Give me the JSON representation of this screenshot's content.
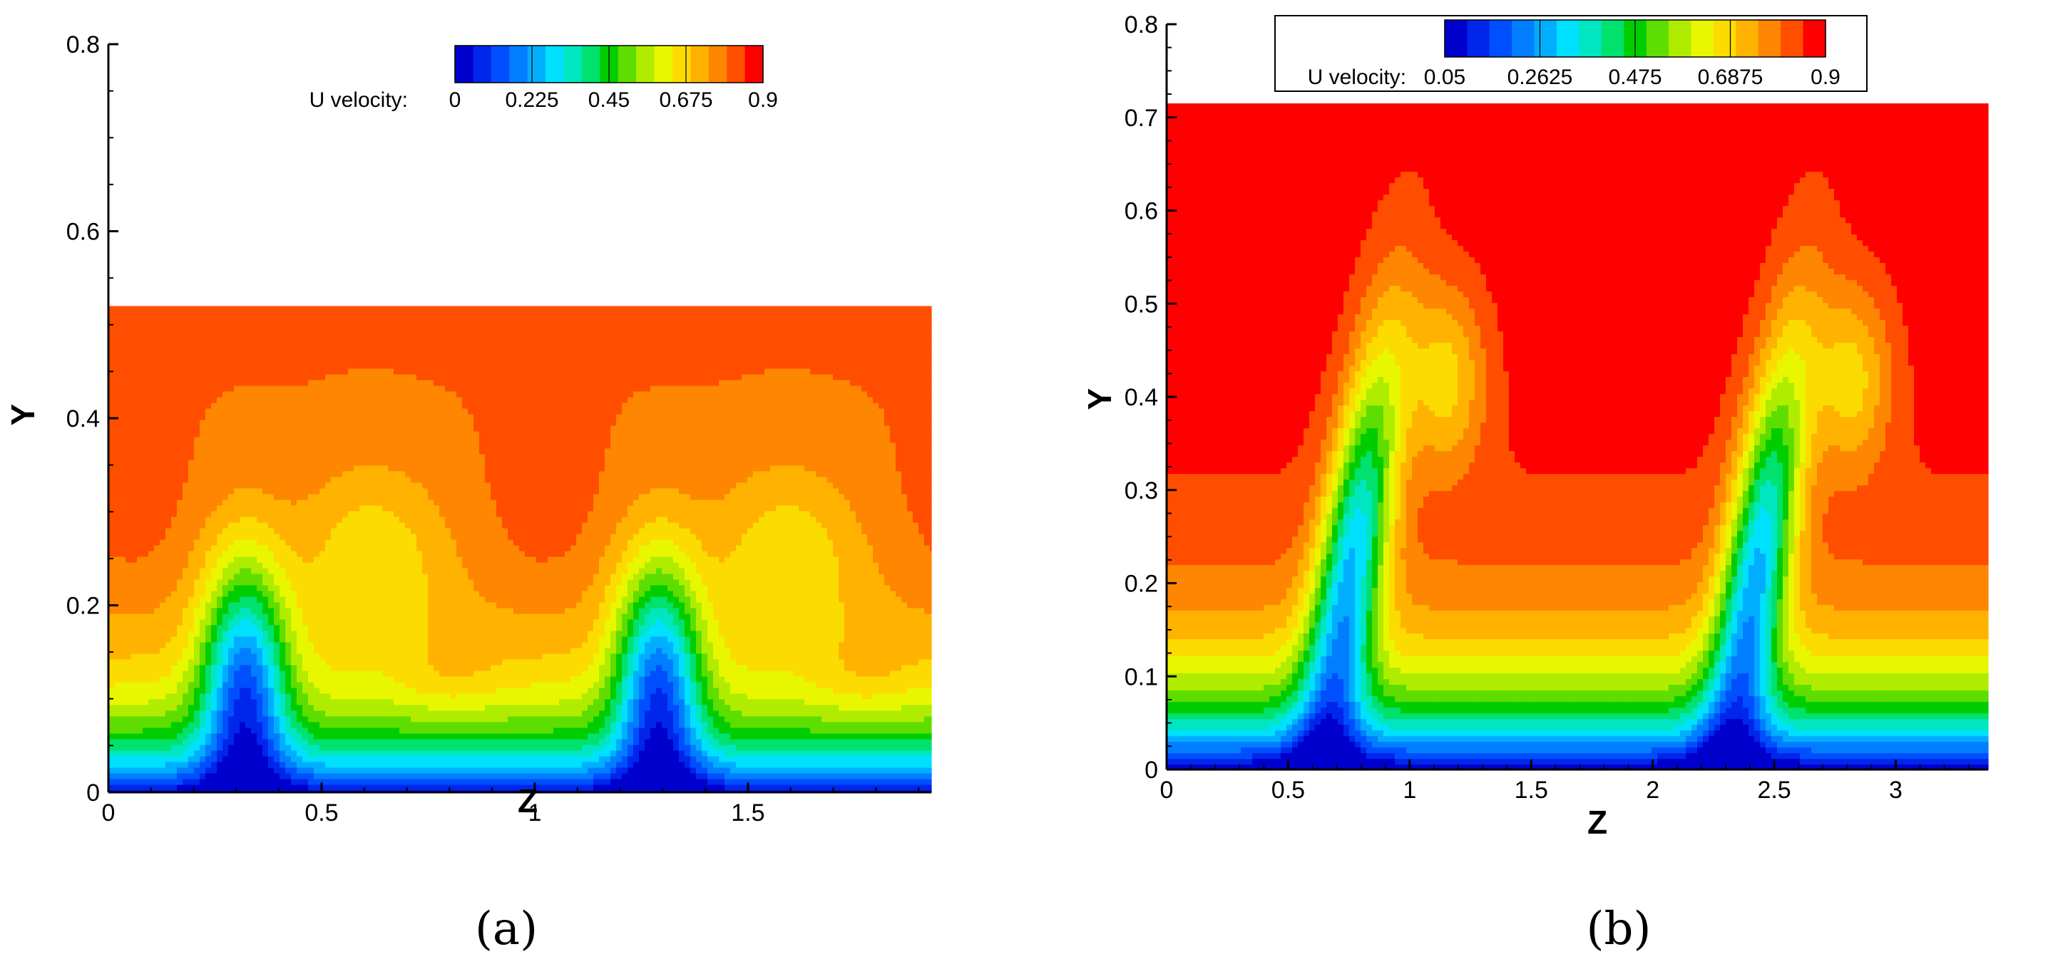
{
  "figure": {
    "panel_labels": [
      "(a)",
      "(b)"
    ]
  },
  "chart_data": [
    {
      "type": "contour",
      "panel": "(a)",
      "xlabel": "Z",
      "ylabel": "Y",
      "xlim": [
        0,
        1.93
      ],
      "ylim": [
        0,
        0.8
      ],
      "domain_top": 0.52,
      "x_ticks": [
        "0",
        "0.5",
        "1",
        "1.5"
      ],
      "x_tick_values": [
        0,
        0.5,
        1,
        1.5
      ],
      "y_ticks": [
        "0",
        "0.2",
        "0.4",
        "0.6",
        "0.8"
      ],
      "y_tick_values": [
        0,
        0.2,
        0.4,
        0.6,
        0.8
      ],
      "legend": {
        "title": "U velocity:",
        "labels": [
          "0",
          "0.225",
          "0.45",
          "0.675",
          "0.9"
        ],
        "min": 0,
        "max": 0.9,
        "levels": 17,
        "boxed": false
      },
      "field": {
        "quantity": "U velocity",
        "free_stream": 0.82,
        "cycles": 2,
        "period_z": 0.97,
        "structures": "periodic Kelvin-Helmholtz rollers, low-speed ejections near Z=0.3 and Z=1.28"
      }
    },
    {
      "type": "contour",
      "panel": "(b)",
      "xlabel": "Z",
      "ylabel": "Y",
      "xlim": [
        0,
        3.38
      ],
      "ylim": [
        0,
        0.8
      ],
      "domain_top": 0.715,
      "x_ticks": [
        "0",
        "0.5",
        "1",
        "1.5",
        "2",
        "2.5",
        "3"
      ],
      "x_tick_values": [
        0,
        0.5,
        1,
        1.5,
        2,
        2.5,
        3
      ],
      "y_ticks": [
        "0",
        "0.1",
        "0.2",
        "0.3",
        "0.4",
        "0.5",
        "0.6",
        "0.7",
        "0.8"
      ],
      "y_tick_values": [
        0,
        0.1,
        0.2,
        0.3,
        0.4,
        0.5,
        0.6,
        0.7,
        0.8
      ],
      "legend": {
        "title": "U velocity:",
        "labels": [
          "0.05",
          "0.2625",
          "0.475",
          "0.6875",
          "0.9"
        ],
        "min": 0.05,
        "max": 0.9,
        "levels": 17,
        "boxed": true
      },
      "field": {
        "quantity": "U velocity",
        "free_stream": 0.9,
        "cycles": 2,
        "period_z": 1.67,
        "structures": "tall mushroom-shaped low-speed streaks near Z=0.72 and Z=2.4"
      }
    }
  ]
}
